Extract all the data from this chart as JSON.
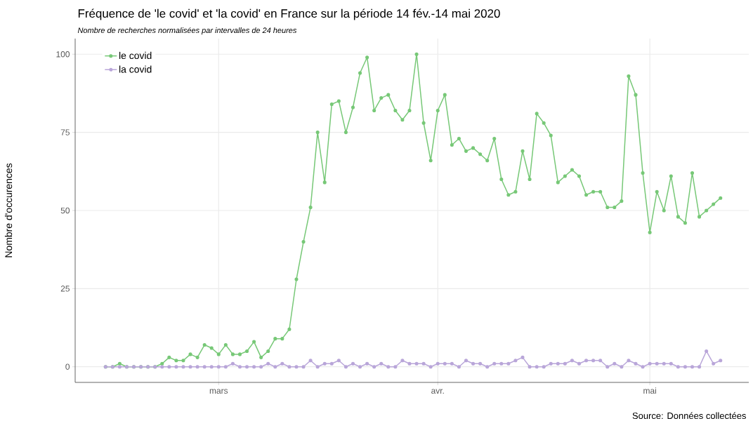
{
  "chart_data": {
    "type": "line",
    "title": "Fréquence de 'le covid' et 'la covid' en France sur la période 14 fév.-14 mai 2020",
    "subtitle": "Nombre de recherches normalisées par intervalles de 24 heures",
    "ylabel": "Nombre d'occurences",
    "annotations": [
      "Source: Données collectées"
    ],
    "categories": [
      null,
      null,
      null,
      null,
      null,
      null,
      null,
      null,
      null,
      null,
      null,
      null,
      null,
      null,
      null,
      null,
      "mars",
      null,
      null,
      null,
      null,
      null,
      null,
      null,
      null,
      null,
      null,
      null,
      null,
      null,
      null,
      null,
      null,
      null,
      null,
      null,
      null,
      null,
      null,
      null,
      null,
      null,
      null,
      null,
      null,
      null,
      null,
      "avr.",
      null,
      null,
      null,
      null,
      null,
      null,
      null,
      null,
      null,
      null,
      null,
      null,
      null,
      null,
      null,
      null,
      null,
      null,
      null,
      null,
      null,
      null,
      null,
      null,
      null,
      null,
      null,
      null,
      null,
      "mai",
      null,
      null,
      null,
      null,
      null,
      null,
      null,
      null,
      null,
      null
    ],
    "series": [
      {
        "name": "le covid",
        "color": "#77c877",
        "values": [
          0,
          0,
          1,
          0,
          0,
          0,
          0,
          0,
          1,
          3,
          2,
          2,
          4,
          3,
          7,
          6,
          4,
          7,
          4,
          4,
          5,
          8,
          3,
          5,
          9,
          9,
          12,
          28,
          40,
          51,
          75,
          59,
          84,
          85,
          75,
          83,
          94,
          99,
          82,
          86,
          87,
          82,
          79,
          82,
          100,
          78,
          66,
          82,
          87,
          71,
          73,
          69,
          70,
          68,
          66,
          73,
          60,
          55,
          56,
          69,
          60,
          81,
          78,
          74,
          59,
          61,
          63,
          61,
          55,
          56,
          56,
          51,
          51,
          53,
          93,
          87,
          62,
          43,
          56,
          50,
          61,
          48,
          46,
          62,
          48,
          50,
          52,
          54
        ]
      },
      {
        "name": "la covid",
        "color": "#b9a6d9",
        "values": [
          0,
          0,
          0,
          0,
          0,
          0,
          0,
          0,
          0,
          0,
          0,
          0,
          0,
          0,
          0,
          0,
          0,
          0,
          1,
          0,
          0,
          0,
          0,
          1,
          0,
          1,
          0,
          0,
          0,
          2,
          0,
          1,
          1,
          2,
          0,
          1,
          0,
          1,
          0,
          1,
          0,
          0,
          2,
          1,
          1,
          1,
          0,
          1,
          1,
          1,
          0,
          2,
          1,
          1,
          0,
          1,
          1,
          1,
          2,
          3,
          0,
          0,
          0,
          1,
          1,
          1,
          2,
          1,
          2,
          2,
          2,
          0,
          1,
          0,
          2,
          1,
          0,
          1,
          1,
          1,
          1,
          0,
          0,
          0,
          0,
          5,
          1,
          2
        ]
      }
    ],
    "ylim": [
      -5,
      105
    ],
    "yticks": [
      0,
      25,
      50,
      75,
      100
    ],
    "grid": true,
    "legend": "top left",
    "marker": "circle",
    "line_style": "solid"
  }
}
